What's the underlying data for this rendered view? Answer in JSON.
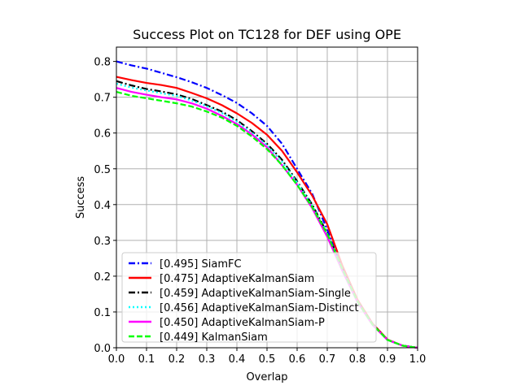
{
  "chart_data": {
    "type": "line",
    "title": "Success Plot on TC128 for DEF using OPE",
    "xlabel": "Overlap",
    "ylabel": "Success",
    "xlim": [
      0,
      1
    ],
    "ylim": [
      0,
      0.84
    ],
    "xticks": [
      "0.0",
      "0.1",
      "0.2",
      "0.3",
      "0.4",
      "0.5",
      "0.6",
      "0.7",
      "0.8",
      "0.9",
      "1.0"
    ],
    "yticks": [
      "0.0",
      "0.1",
      "0.2",
      "0.3",
      "0.4",
      "0.5",
      "0.6",
      "0.7",
      "0.8"
    ],
    "grid": true,
    "legend_position": "lower-left",
    "x": [
      0,
      0.05,
      0.1,
      0.15,
      0.2,
      0.25,
      0.3,
      0.35,
      0.4,
      0.45,
      0.5,
      0.55,
      0.6,
      0.65,
      0.7,
      0.75,
      0.8,
      0.85,
      0.9,
      0.95,
      1.0
    ],
    "series": [
      {
        "name": "[0.495] SiamFC",
        "color": "#0000ff",
        "dash": "dashdot",
        "values": [
          0.8,
          0.789,
          0.78,
          0.768,
          0.756,
          0.742,
          0.726,
          0.706,
          0.684,
          0.655,
          0.62,
          0.57,
          0.5,
          0.43,
          0.33,
          0.22,
          0.13,
          0.065,
          0.022,
          0.006,
          0.0
        ]
      },
      {
        "name": "[0.475] AdaptiveKalmanSiam",
        "color": "#ff0000",
        "dash": "solid",
        "values": [
          0.757,
          0.748,
          0.74,
          0.734,
          0.726,
          0.712,
          0.697,
          0.678,
          0.655,
          0.628,
          0.595,
          0.55,
          0.49,
          0.425,
          0.345,
          0.23,
          0.135,
          0.068,
          0.023,
          0.006,
          0.0
        ]
      },
      {
        "name": "[0.459] AdaptiveKalmanSiam-Single",
        "color": "#000000",
        "dash": "dashdot",
        "values": [
          0.745,
          0.733,
          0.723,
          0.716,
          0.708,
          0.695,
          0.678,
          0.66,
          0.636,
          0.605,
          0.57,
          0.525,
          0.465,
          0.4,
          0.32,
          0.22,
          0.13,
          0.066,
          0.022,
          0.006,
          0.0
        ]
      },
      {
        "name": "[0.456] AdaptiveKalmanSiam-Distinct",
        "color": "#00ffff",
        "dash": "dotted",
        "values": [
          0.738,
          0.727,
          0.719,
          0.711,
          0.704,
          0.691,
          0.675,
          0.656,
          0.632,
          0.601,
          0.566,
          0.52,
          0.462,
          0.397,
          0.318,
          0.218,
          0.129,
          0.065,
          0.022,
          0.006,
          0.0
        ]
      },
      {
        "name": "[0.450] AdaptiveKalmanSiam-P",
        "color": "#ff00ff",
        "dash": "solid",
        "values": [
          0.726,
          0.715,
          0.707,
          0.7,
          0.694,
          0.683,
          0.668,
          0.648,
          0.625,
          0.596,
          0.56,
          0.51,
          0.455,
          0.39,
          0.31,
          0.215,
          0.128,
          0.064,
          0.022,
          0.006,
          0.0
        ]
      },
      {
        "name": "[0.449] KalmanSiam",
        "color": "#00ff00",
        "dash": "dashed",
        "values": [
          0.715,
          0.704,
          0.697,
          0.69,
          0.683,
          0.674,
          0.66,
          0.643,
          0.62,
          0.59,
          0.555,
          0.51,
          0.455,
          0.393,
          0.318,
          0.22,
          0.13,
          0.065,
          0.022,
          0.006,
          0.0
        ]
      }
    ]
  }
}
